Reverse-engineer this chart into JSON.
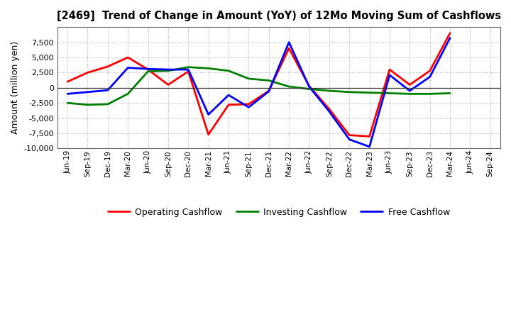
{
  "title": "[2469]  Trend of Change in Amount (YoY) of 12Mo Moving Sum of Cashflows",
  "ylabel": "Amount (million yen)",
  "x_labels": [
    "Jun-19",
    "Sep-19",
    "Dec-19",
    "Mar-20",
    "Jun-20",
    "Sep-20",
    "Dec-20",
    "Mar-21",
    "Jun-21",
    "Sep-21",
    "Dec-21",
    "Mar-22",
    "Jun-22",
    "Sep-22",
    "Dec-22",
    "Mar-23",
    "Jun-23",
    "Sep-23",
    "Dec-23",
    "Mar-24",
    "Jun-24",
    "Sep-24"
  ],
  "operating": [
    1000,
    2500,
    3500,
    5000,
    3000,
    500,
    2700,
    -7700,
    -2800,
    -2700,
    -500,
    6500,
    300,
    -3500,
    -7800,
    -8000,
    3000,
    500,
    2800,
    9000,
    null,
    null
  ],
  "investing": [
    -2500,
    -2800,
    -2700,
    -1000,
    2700,
    2800,
    3400,
    3200,
    2800,
    1500,
    1200,
    200,
    -200,
    -500,
    -700,
    -800,
    -900,
    -1000,
    -1000,
    -900,
    null,
    null
  ],
  "free": [
    -1000,
    -700,
    -400,
    3300,
    3100,
    3000,
    3000,
    -4400,
    -1200,
    -3200,
    -600,
    7500,
    200,
    -3900,
    -8500,
    -9700,
    2100,
    -500,
    1800,
    8200,
    null,
    null
  ],
  "ylim": [
    -10000,
    10000
  ],
  "yticks": [
    -10000,
    -7500,
    -5000,
    -2500,
    0,
    2500,
    5000,
    7500
  ],
  "line_colors": {
    "operating": "#FF0000",
    "investing": "#008000",
    "free": "#0000FF"
  },
  "line_width": 2.0,
  "legend": [
    "Operating Cashflow",
    "Investing Cashflow",
    "Free Cashflow"
  ],
  "background_color": "#FFFFFF",
  "grid_color": "#888888"
}
